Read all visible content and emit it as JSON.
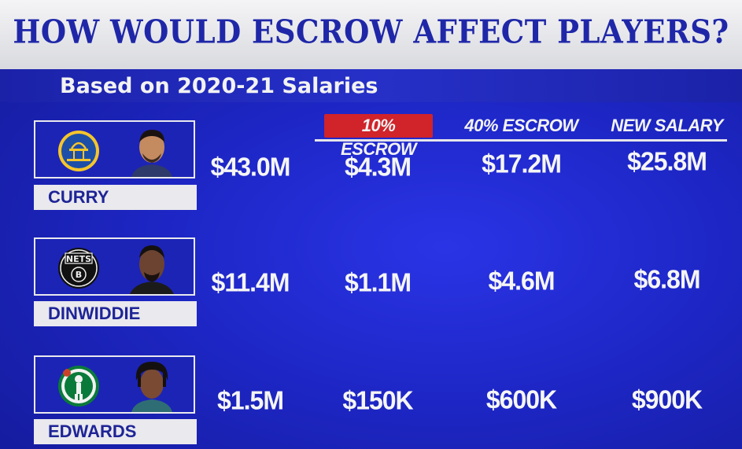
{
  "header": {
    "title": "HOW WOULD ESCROW AFFECT PLAYERS?",
    "subtitle": "Based on 2020-21 Salaries"
  },
  "columns": [
    "10% ESCROW",
    "40% ESCROW",
    "NEW SALARY"
  ],
  "colors": {
    "background": "#1f27c9",
    "title_text": "#1f27a8",
    "highlight": "#d0232a",
    "name_bar": "#e9e9ee"
  },
  "players": [
    {
      "name": "CURRY",
      "team_logo": "warriors-logo",
      "salary": "$43.0M",
      "escrow_10": "$4.3M",
      "escrow_40": "$17.2M",
      "new_salary": "$25.8M"
    },
    {
      "name": "DINWIDDIE",
      "team_logo": "nets-logo",
      "salary": "$11.4M",
      "escrow_10": "$1.1M",
      "escrow_40": "$4.6M",
      "new_salary": "$6.8M"
    },
    {
      "name": "EDWARDS",
      "team_logo": "celtics-logo",
      "salary": "$1.5M",
      "escrow_10": "$150K",
      "escrow_40": "$600K",
      "new_salary": "$900K"
    }
  ]
}
